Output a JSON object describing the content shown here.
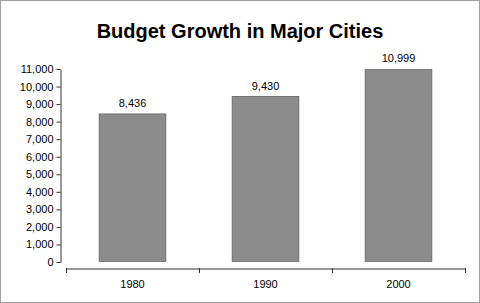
{
  "chart_data": {
    "type": "bar",
    "title": "Budget Growth in Major Cities",
    "categories": [
      "1980",
      "1990",
      "2000"
    ],
    "values": [
      8436,
      9430,
      10999
    ],
    "value_labels": [
      "8,436",
      "9,430",
      "10,999"
    ],
    "data_labels": true,
    "color": "#8c8c8c",
    "grid": false,
    "ylim": [
      0,
      11000
    ],
    "yticks": [
      0,
      {
        "value": 1000,
        "label": "1,000"
      },
      {
        "value": 2000,
        "label": "2,000"
      },
      {
        "value": 3000,
        "label": "3,000"
      },
      {
        "value": 4000,
        "label": "4,000"
      },
      {
        "value": 5000,
        "label": "5,000"
      },
      {
        "value": 6000,
        "label": "6,000"
      },
      {
        "value": 7000,
        "label": "7,000"
      },
      {
        "value": 8000,
        "label": "8,000"
      },
      {
        "value": 9000,
        "label": "9,000"
      },
      {
        "value": 10000,
        "label": "10,000"
      },
      {
        "value": 11000,
        "label": "11,000"
      }
    ]
  }
}
